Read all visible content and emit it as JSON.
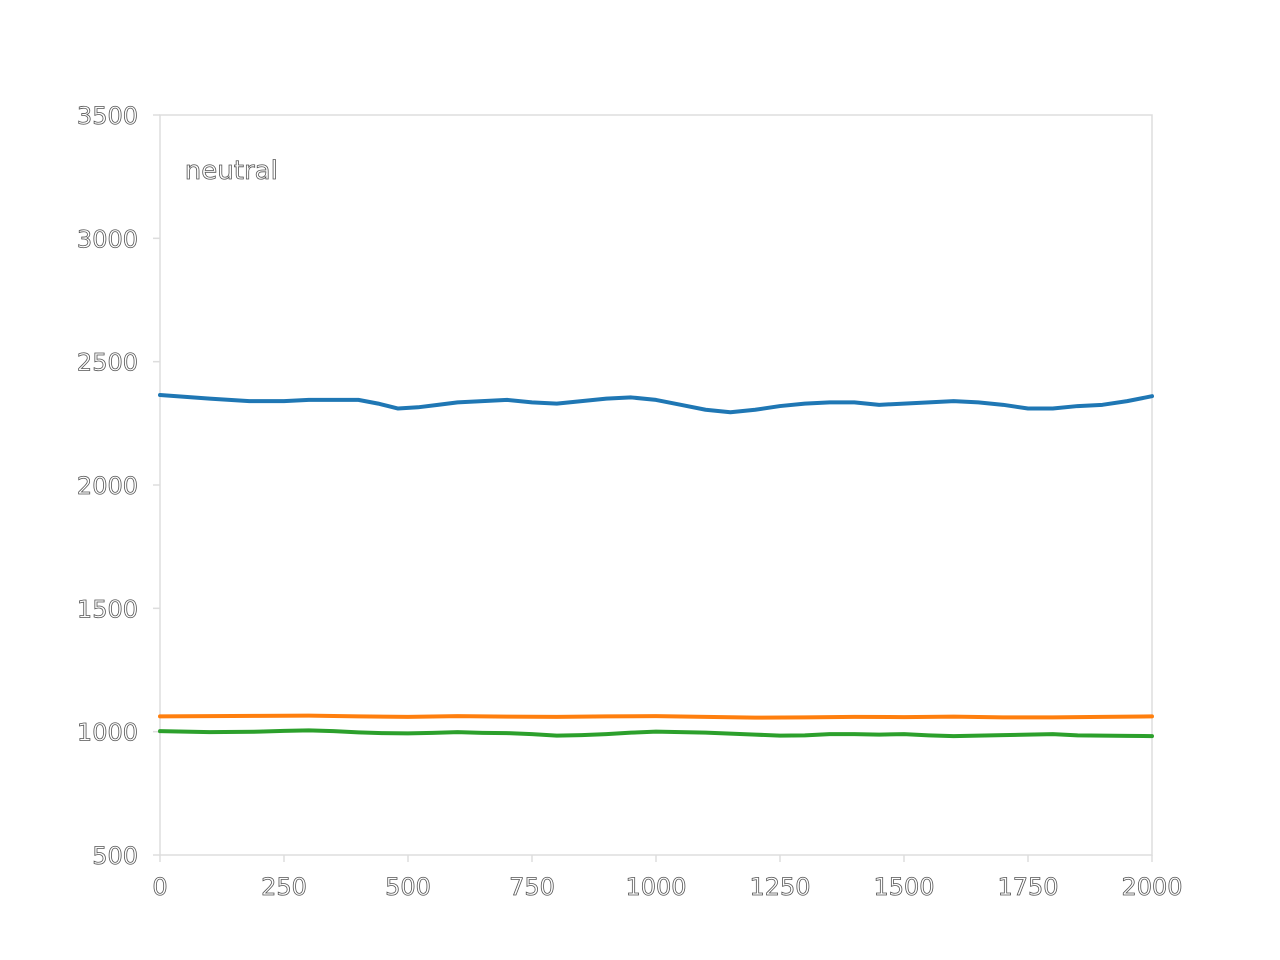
{
  "chart_data": {
    "type": "line",
    "title": "",
    "xlabel": "",
    "ylabel": "",
    "xlim": [
      0,
      2000
    ],
    "ylim": [
      500,
      3500
    ],
    "x_ticks": [
      "0",
      "250",
      "500",
      "750",
      "1000",
      "1250",
      "1500",
      "1750",
      "2000"
    ],
    "y_ticks": [
      "500",
      "1000",
      "1500",
      "2000",
      "2500",
      "3000",
      "3500"
    ],
    "grid": false,
    "legend": "none",
    "annotations": [
      {
        "text": "neutral",
        "x": 50,
        "y": 3240
      }
    ],
    "series": [
      {
        "color": "#1f77b4",
        "x": [
          0,
          100,
          180,
          250,
          300,
          350,
          400,
          440,
          460,
          480,
          520,
          560,
          600,
          650,
          700,
          750,
          800,
          850,
          900,
          950,
          1000,
          1050,
          1100,
          1150,
          1200,
          1250,
          1300,
          1350,
          1400,
          1450,
          1500,
          1550,
          1600,
          1650,
          1700,
          1750,
          1800,
          1850,
          1900,
          1950,
          2000
        ],
        "y": [
          2365,
          2350,
          2340,
          2340,
          2345,
          2345,
          2345,
          2330,
          2320,
          2310,
          2315,
          2325,
          2335,
          2340,
          2345,
          2335,
          2330,
          2340,
          2350,
          2355,
          2345,
          2325,
          2305,
          2295,
          2305,
          2320,
          2330,
          2335,
          2335,
          2325,
          2330,
          2335,
          2340,
          2335,
          2325,
          2310,
          2310,
          2320,
          2325,
          2340,
          2360
        ]
      },
      {
        "color": "#ff7f0e",
        "x": [
          0,
          100,
          200,
          300,
          400,
          500,
          600,
          700,
          800,
          900,
          1000,
          1100,
          1200,
          1300,
          1400,
          1500,
          1600,
          1700,
          1800,
          1900,
          2000
        ],
        "y": [
          1062,
          1063,
          1064,
          1065,
          1062,
          1060,
          1063,
          1061,
          1060,
          1062,
          1063,
          1060,
          1057,
          1058,
          1060,
          1059,
          1061,
          1058,
          1058,
          1060,
          1062
        ]
      },
      {
        "color": "#2ca02c",
        "x": [
          0,
          100,
          200,
          250,
          300,
          350,
          400,
          450,
          500,
          550,
          600,
          650,
          700,
          750,
          800,
          850,
          900,
          950,
          1000,
          1050,
          1100,
          1150,
          1200,
          1250,
          1300,
          1350,
          1400,
          1450,
          1500,
          1550,
          1600,
          1650,
          1700,
          1750,
          1800,
          1850,
          1900,
          1950,
          2000
        ],
        "y": [
          1002,
          998,
          1000,
          1003,
          1005,
          1002,
          997,
          994,
          993,
          995,
          998,
          995,
          994,
          990,
          984,
          986,
          990,
          996,
          1000,
          998,
          996,
          992,
          988,
          984,
          985,
          990,
          990,
          988,
          990,
          985,
          982,
          984,
          986,
          988,
          990,
          985,
          984,
          983,
          982
        ]
      }
    ]
  }
}
